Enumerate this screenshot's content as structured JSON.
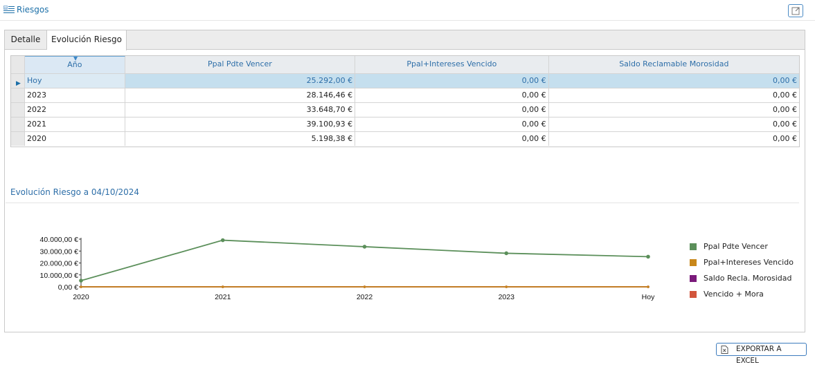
{
  "header": {
    "title": "Riesgos",
    "title_icon": "list-icon",
    "refresh_icon": "refresh-icon"
  },
  "tabs": [
    {
      "label": "Detalle",
      "active": false
    },
    {
      "label": "Evolución Riesgo",
      "active": true
    }
  ],
  "grid": {
    "columns": [
      "Año",
      "Ppal Pdte Vencer",
      "Ppal+Intereses Vencido",
      "Saldo Reclamable Morosidad"
    ],
    "rows": [
      {
        "year": "Hoy",
        "ppal": "25.292,00 €",
        "vencido": "0,00 €",
        "saldo": "0,00 €",
        "selected": true
      },
      {
        "year": "2023",
        "ppal": "28.146,46 €",
        "vencido": "0,00 €",
        "saldo": "0,00 €",
        "selected": false
      },
      {
        "year": "2022",
        "ppal": "33.648,70 €",
        "vencido": "0,00 €",
        "saldo": "0,00 €",
        "selected": false
      },
      {
        "year": "2021",
        "ppal": "39.100,93 €",
        "vencido": "0,00 €",
        "saldo": "0,00 €",
        "selected": false
      },
      {
        "year": "2020",
        "ppal": "5.198,38 €",
        "vencido": "0,00 €",
        "saldo": "0,00 €",
        "selected": false
      }
    ]
  },
  "chart_section": {
    "title": "Evolución Riesgo a 04/10/2024"
  },
  "chart_data": {
    "type": "line",
    "title": "",
    "xlabel": "",
    "ylabel": "",
    "categories": [
      "2020",
      "2021",
      "2022",
      "2023",
      "Hoy"
    ],
    "ylim": [
      0,
      40000
    ],
    "y_ticks": [
      "40.000,00 €",
      "30.000,00 €",
      "20.000,00 €",
      "10.000,00 €",
      "0,00 €"
    ],
    "y_tick_values": [
      40000,
      30000,
      20000,
      10000,
      0
    ],
    "grid": false,
    "legend_position": "right",
    "series": [
      {
        "name": "Ppal Pdte Vencer",
        "color": "#5b8f5a",
        "values": [
          5198.38,
          39100.93,
          33648.7,
          28146.46,
          25292.0
        ]
      },
      {
        "name": "Ppal+Intereses Vencido",
        "color": "#c8871a",
        "values": [
          0,
          0,
          0,
          0,
          0
        ]
      },
      {
        "name": "Saldo Recla. Morosidad",
        "color": "#7a1a7a",
        "values": [
          0,
          0,
          0,
          0,
          0
        ]
      },
      {
        "name": "Vencido + Mora",
        "color": "#d2553c",
        "values": [
          0,
          0,
          0,
          0,
          0
        ]
      }
    ]
  },
  "footer": {
    "export_label": "EXPORTAR A EXCEL",
    "export_icon": "excel-icon"
  },
  "colors": {
    "accent": "#2d6ea8",
    "selected_row": "#c5dfee"
  }
}
